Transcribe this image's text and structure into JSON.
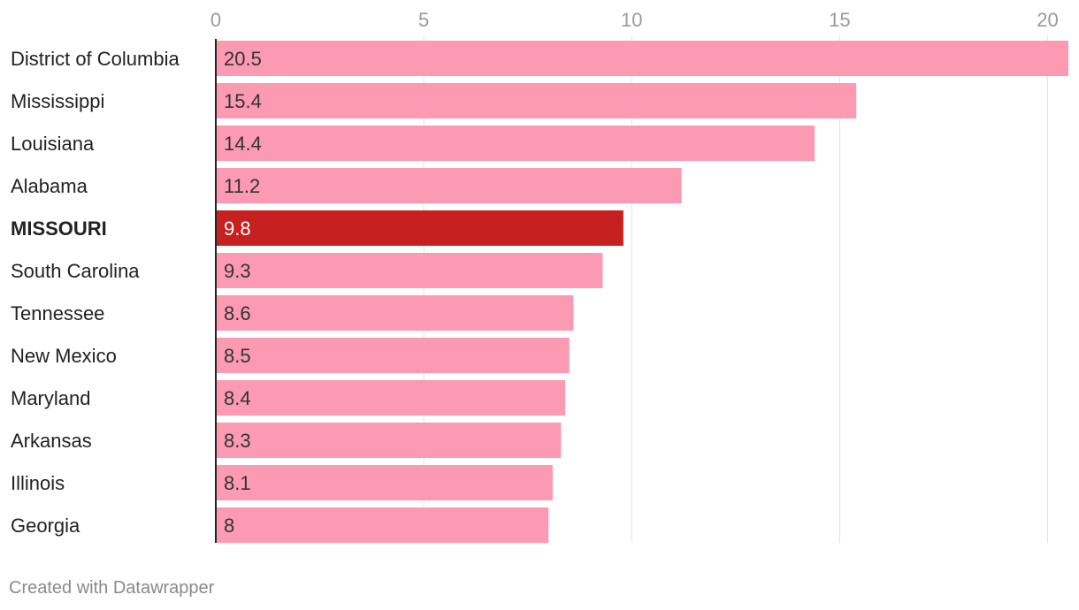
{
  "chart_data": {
    "type": "bar",
    "orientation": "horizontal",
    "categories": [
      "District of Columbia",
      "Mississippi",
      "Louisiana",
      "Alabama",
      "MISSOURI",
      "South Carolina",
      "Tennessee",
      "New Mexico",
      "Maryland",
      "Arkansas",
      "Illinois",
      "Georgia"
    ],
    "values": [
      20.5,
      15.4,
      14.4,
      11.2,
      9.8,
      9.3,
      8.6,
      8.5,
      8.4,
      8.3,
      8.1,
      8
    ],
    "value_labels": [
      "20.5",
      "15.4",
      "14.4",
      "11.2",
      "9.8",
      "9.3",
      "8.6",
      "8.5",
      "8.4",
      "8.3",
      "8.1",
      "8"
    ],
    "highlight": "MISSOURI",
    "xlim": [
      0,
      20.5
    ],
    "xticks": [
      0,
      5,
      10,
      15,
      20
    ],
    "xtick_labels": [
      "0",
      "5",
      "10",
      "15",
      "20"
    ],
    "grid": true,
    "colors": {
      "bar": "#fb9ab2",
      "highlight": "#c62020",
      "grid": "#e2e2e2",
      "axis": "#222222"
    }
  },
  "footer": {
    "credit": "Created with Datawrapper"
  }
}
